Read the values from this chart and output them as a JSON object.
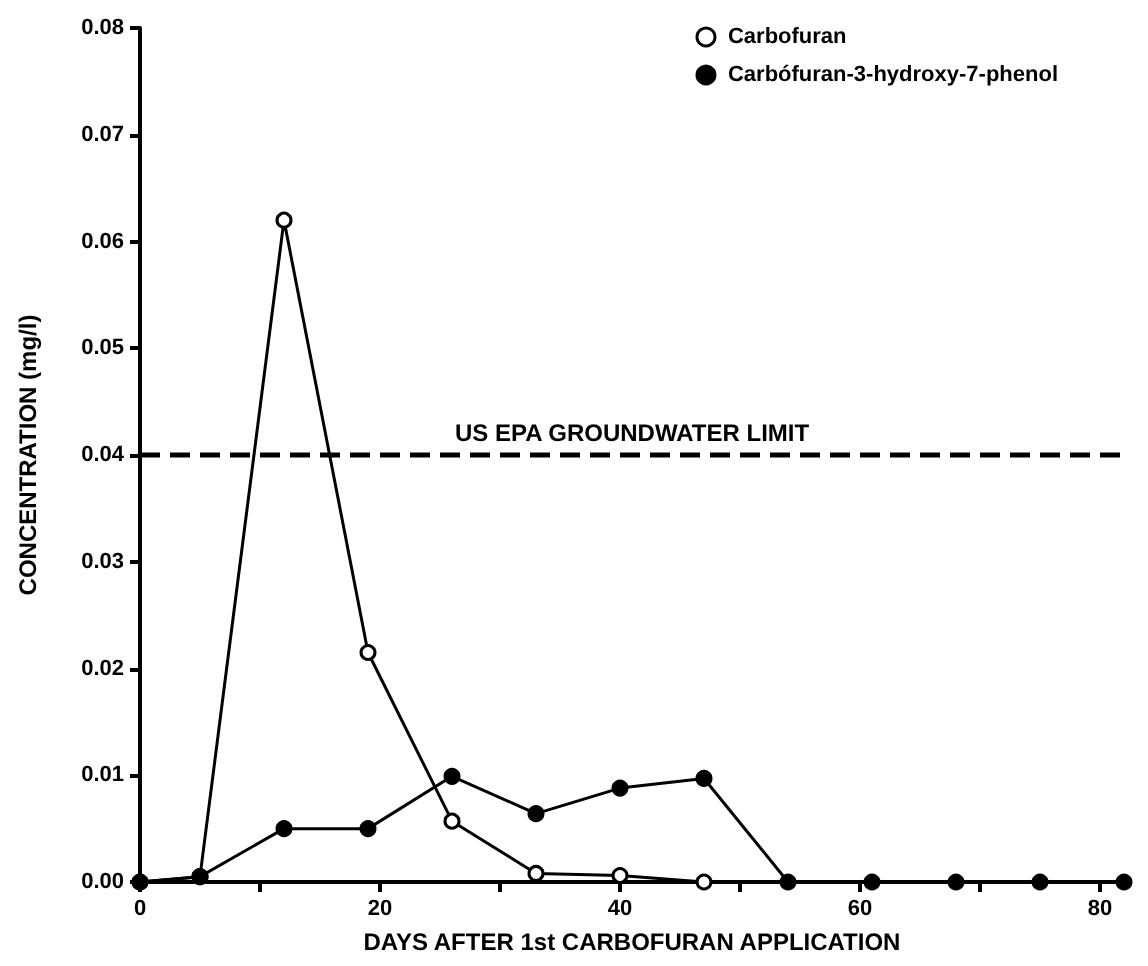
{
  "chart_data": {
    "type": "line",
    "xlabel": "DAYS AFTER 1st CARBOFURAN APPLICATION",
    "ylabel": "CONCENTRATION (mg/l)",
    "xlim": [
      0,
      82
    ],
    "xticks": [
      0,
      {
        "value": 10,
        "label": null
      },
      20,
      {
        "value": 30,
        "label": null
      },
      40,
      {
        "value": 50,
        "label": null
      },
      60,
      {
        "value": 70,
        "label": null
      },
      80
    ],
    "ylim": [
      0,
      0.08
    ],
    "yticks": [
      "0.00",
      0.01,
      0.02,
      0.03,
      0.04,
      0.05,
      0.06,
      0.07,
      0.08
    ],
    "grid": false,
    "legend": "top right",
    "line_style": "solid",
    "series": [
      {
        "name": "Carbofuran",
        "color": "#000000",
        "marker": "open circle",
        "x": [
          0,
          5,
          12,
          19,
          26,
          33,
          40,
          47
        ],
        "values": [
          0,
          0.0005,
          0.062,
          0.0215,
          0.0057,
          0.0008,
          0.0006,
          0
        ]
      },
      {
        "name": "Carbófuran-3-hydroxy-7-phenol",
        "color": "#000000",
        "marker": "circle",
        "x": [
          0,
          5,
          12,
          19,
          26,
          33,
          40,
          47,
          54,
          61,
          68,
          75,
          82
        ],
        "values": [
          0,
          0.0005,
          0.005,
          0.005,
          0.0099,
          0.0064,
          0.0088,
          0.0097,
          0,
          0,
          0,
          0,
          0
        ]
      }
    ],
    "ref_lines": [
      {
        "axis": "y",
        "value": 0.04,
        "label": "US EPA GROUNDWATER LIMIT",
        "line_style": "dashed",
        "color": "#000000"
      }
    ]
  }
}
